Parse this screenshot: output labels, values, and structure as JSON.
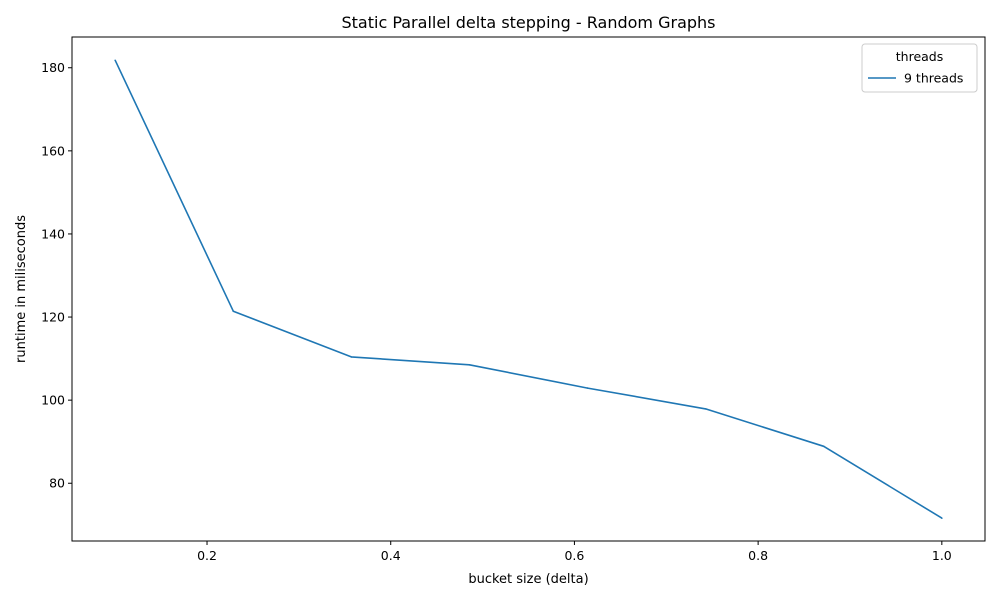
{
  "chart_data": {
    "type": "line",
    "title": "Static Parallel delta stepping - Random Graphs",
    "xlabel": "bucket size (delta)",
    "ylabel": "runtime in miliseconds",
    "xlim": [
      0.053,
      1.047
    ],
    "ylim": [
      66.1,
      187.4
    ],
    "xticks": [
      0.2,
      0.4,
      0.6,
      0.8,
      1.0
    ],
    "xtick_labels": [
      "0.2",
      "0.4",
      "0.6",
      "0.8",
      "1.0"
    ],
    "yticks": [
      80,
      100,
      120,
      140,
      160,
      180
    ],
    "ytick_labels": [
      "80",
      "100",
      "120",
      "140",
      "160",
      "180"
    ],
    "grid": false,
    "legend": {
      "title": "threads",
      "position": "top-right"
    },
    "series": [
      {
        "name": "9 threads",
        "color": "#1f77b4",
        "x": [
          0.1,
          0.2286,
          0.3571,
          0.4857,
          0.6143,
          0.7429,
          0.8714,
          1.0
        ],
        "y": [
          181.8,
          121.4,
          110.4,
          108.5,
          102.9,
          97.9,
          88.9,
          71.6
        ]
      }
    ]
  }
}
